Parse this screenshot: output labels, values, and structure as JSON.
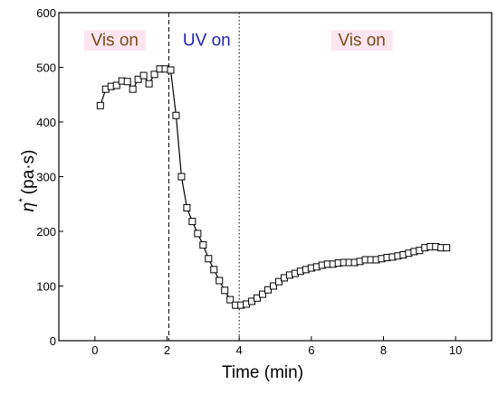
{
  "chart_data": {
    "type": "line",
    "xlabel": "Time (min)",
    "ylabel_symbol": "η",
    "ylabel_superscript": "*",
    "ylabel_unit": "(pa·s)",
    "xlim": [
      -1,
      11
    ],
    "ylim": [
      0,
      600
    ],
    "xticks": [
      0,
      2,
      4,
      6,
      8,
      10
    ],
    "yticks": [
      0,
      100,
      200,
      300,
      400,
      500,
      600
    ],
    "grid": false,
    "legend": "none",
    "marker": "open-square",
    "line_color": "#000000",
    "vlines": [
      {
        "x": 2.05,
        "style": "dashed"
      },
      {
        "x": 4.0,
        "style": "dotted"
      }
    ],
    "phase_labels": [
      {
        "text": "Vis on",
        "x": 0.55,
        "y": 540,
        "color": "#7a4a1a",
        "bg": "#fbe6f0"
      },
      {
        "text": "UV on",
        "x": 3.1,
        "y": 540,
        "color": "#2222bb",
        "bg": "#ffffff"
      },
      {
        "text": "Vis on",
        "x": 7.4,
        "y": 540,
        "color": "#7a4a1a",
        "bg": "#fbe6f0"
      }
    ],
    "series": [
      {
        "x": [
          0.15,
          0.3,
          0.45,
          0.6,
          0.75,
          0.9,
          1.05,
          1.2,
          1.35,
          1.5,
          1.65,
          1.8,
          1.95,
          2.1,
          2.25,
          2.4,
          2.55,
          2.7,
          2.85,
          3.0,
          3.15,
          3.3,
          3.45,
          3.6,
          3.75,
          3.9,
          4.05,
          4.2,
          4.35,
          4.5,
          4.65,
          4.8,
          4.95,
          5.1,
          5.25,
          5.4,
          5.55,
          5.7,
          5.85,
          6.0,
          6.15,
          6.3,
          6.45,
          6.6,
          6.75,
          6.9,
          7.05,
          7.2,
          7.35,
          7.5,
          7.65,
          7.8,
          7.95,
          8.1,
          8.25,
          8.4,
          8.55,
          8.7,
          8.85,
          9.0,
          9.15,
          9.3,
          9.45,
          9.6,
          9.75
        ],
        "values": [
          430,
          460,
          465,
          467,
          475,
          474,
          460,
          478,
          485,
          470,
          487,
          497,
          497,
          495,
          412,
          300,
          243,
          218,
          196,
          175,
          150,
          130,
          110,
          92,
          75,
          65,
          65,
          67,
          72,
          78,
          85,
          93,
          100,
          108,
          115,
          120,
          123,
          127,
          130,
          133,
          135,
          138,
          140,
          140,
          142,
          143,
          143,
          143,
          145,
          148,
          148,
          148,
          150,
          152,
          153,
          155,
          157,
          160,
          163,
          165,
          170,
          172,
          172,
          170,
          170
        ]
      }
    ]
  }
}
